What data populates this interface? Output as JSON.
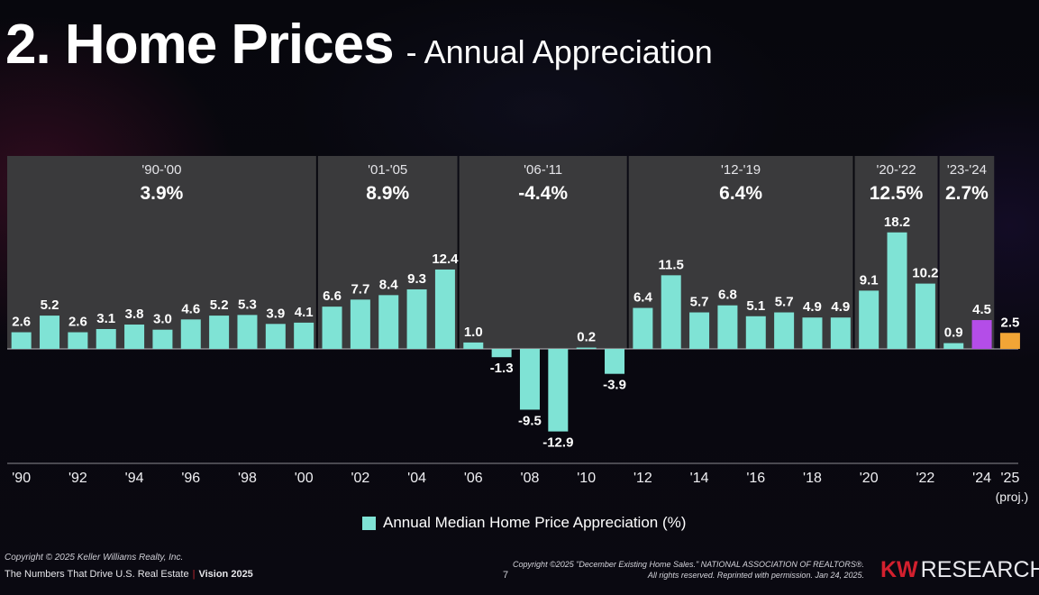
{
  "slide": {
    "title": "2. Home Prices",
    "subtitle": "- Annual Appreciation",
    "page_number": "7",
    "copyright": "Copyright © 2025 Keller Williams Realty, Inc.",
    "footer_left": "The Numbers That Drive U.S. Real Estate",
    "footer_left_bold": "Vision 2025",
    "footer_sep": "|",
    "source_line1": "Copyright ©2025 \"December Existing Home Sales.\" NATIONAL ASSOCIATION OF REALTORS®.",
    "source_line2": "All rights reserved. Reprinted with permission. Jan 24, 2025.",
    "logo_kw": "KW",
    "logo_research": "RESEARCH"
  },
  "colors": {
    "bar_default": "#7fe3d5",
    "bar_2024": "#b44de8",
    "bar_2025": "#f2a536",
    "period_box": "#3a3a3c"
  },
  "chart_data": {
    "type": "bar",
    "series_name": "Annual Median Home Price Appreciation (%)",
    "legend_position": "bottom",
    "ylim": [
      -14,
      20
    ],
    "years": [
      1990,
      1991,
      1992,
      1993,
      1994,
      1995,
      1996,
      1997,
      1998,
      1999,
      2000,
      2001,
      2002,
      2003,
      2004,
      2005,
      2006,
      2007,
      2008,
      2009,
      2010,
      2011,
      2012,
      2013,
      2014,
      2015,
      2016,
      2017,
      2018,
      2019,
      2020,
      2021,
      2022,
      2023,
      2024,
      2025
    ],
    "values": [
      2.6,
      5.2,
      2.6,
      3.1,
      3.8,
      3.0,
      4.6,
      5.2,
      5.3,
      3.9,
      4.1,
      6.6,
      7.7,
      8.4,
      9.3,
      12.4,
      1.0,
      -1.3,
      -9.5,
      -12.9,
      0.2,
      -3.9,
      6.4,
      11.5,
      5.7,
      6.8,
      5.1,
      5.7,
      4.9,
      4.9,
      9.1,
      18.2,
      10.2,
      0.9,
      4.5,
      2.5
    ],
    "value_labels": [
      "2.6",
      "5.2",
      "2.6",
      "3.1",
      "3.8",
      "3.0",
      "4.6",
      "5.2",
      "5.3",
      "3.9",
      "4.1",
      "6.6",
      "7.7",
      "8.4",
      "9.3",
      "12.4",
      "1.0",
      "-1.3",
      "-9.5",
      "-12.9",
      "0.2",
      "-3.9",
      "6.4",
      "11.5",
      "5.7",
      "6.8",
      "5.1",
      "5.7",
      "4.9",
      "4.9",
      "9.1",
      "18.2",
      "10.2",
      "0.9",
      "4.5",
      "2.5"
    ],
    "x_tick_labels": [
      {
        "index": 0,
        "label": "'90"
      },
      {
        "index": 2,
        "label": "'92"
      },
      {
        "index": 4,
        "label": "'94"
      },
      {
        "index": 6,
        "label": "'96"
      },
      {
        "index": 8,
        "label": "'98"
      },
      {
        "index": 10,
        "label": "'00"
      },
      {
        "index": 12,
        "label": "'02"
      },
      {
        "index": 14,
        "label": "'04"
      },
      {
        "index": 16,
        "label": "'06"
      },
      {
        "index": 18,
        "label": "'08"
      },
      {
        "index": 20,
        "label": "'10"
      },
      {
        "index": 22,
        "label": "'12"
      },
      {
        "index": 24,
        "label": "'14"
      },
      {
        "index": 26,
        "label": "'16"
      },
      {
        "index": 28,
        "label": "'18"
      },
      {
        "index": 30,
        "label": "'20"
      },
      {
        "index": 32,
        "label": "'22"
      },
      {
        "index": 34,
        "label": "'24"
      },
      {
        "index": 35,
        "label": "'25",
        "sublabel": "(proj.)"
      }
    ],
    "periods": [
      {
        "label": "'90-'00",
        "value": "3.9%",
        "start": 0,
        "end": 10
      },
      {
        "label": "'01-'05",
        "value": "8.9%",
        "start": 11,
        "end": 15
      },
      {
        "label": "'06-'11",
        "value": "-4.4%",
        "start": 16,
        "end": 21
      },
      {
        "label": "'12-'19",
        "value": "6.4%",
        "start": 22,
        "end": 29
      },
      {
        "label": "'20-'22",
        "value": "12.5%",
        "start": 30,
        "end": 32
      },
      {
        "label": "'23-'24",
        "value": "2.7%",
        "start": 33,
        "end": 34
      }
    ]
  }
}
